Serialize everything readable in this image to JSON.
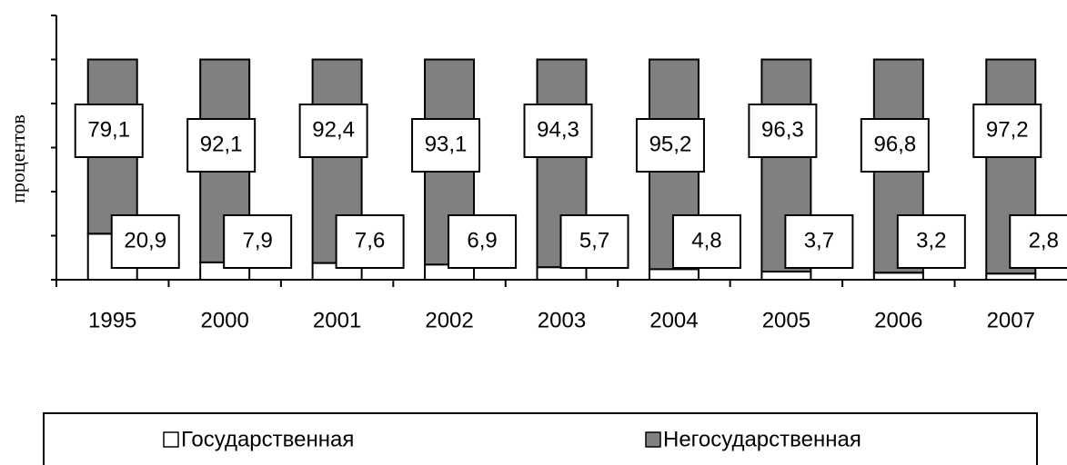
{
  "chart_data": {
    "type": "stacked_bar",
    "y_label": "процентов",
    "categories": [
      "1995",
      "2000",
      "2001",
      "2002",
      "2003",
      "2004",
      "2005",
      "2006",
      "2007"
    ],
    "series": [
      {
        "name": "Государственная",
        "color": "#ffffff",
        "values": [
          20.9,
          7.9,
          7.6,
          6.9,
          5.7,
          4.8,
          3.7,
          3.2,
          2.8
        ],
        "value_labels": [
          "20,9",
          "7,9",
          "7,6",
          "6,9",
          "5,7",
          "4,8",
          "3,7",
          "3,2",
          "2,8"
        ]
      },
      {
        "name": "Негосударственная",
        "color": "#808080",
        "values": [
          79.1,
          92.1,
          92.4,
          93.1,
          94.3,
          95.2,
          96.3,
          96.8,
          97.2
        ],
        "value_labels": [
          "79,1",
          "92,1",
          "92,4",
          "93,1",
          "94,3",
          "95,2",
          "96,3",
          "96,8",
          "97,2"
        ]
      }
    ],
    "ylim": [
      0,
      120
    ],
    "yticks": [
      0,
      20,
      40,
      60,
      80,
      100,
      120
    ],
    "legend": "bottom"
  }
}
